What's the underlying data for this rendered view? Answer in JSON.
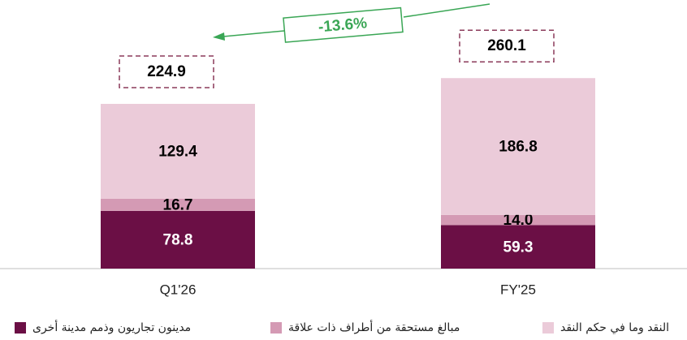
{
  "chart_data": {
    "type": "stacked_bar",
    "categories": [
      "Q1'26",
      "FY'25"
    ],
    "series": [
      {
        "name": "مدينون تجاريون وذمم مدينة أخرى",
        "color": "#6b0f45",
        "values": [
          78.8,
          59.3
        ]
      },
      {
        "name": "مبالغ مستحقة من أطراف ذات علاقة",
        "color": "#d49ab4",
        "values": [
          16.7,
          14.0
        ],
        "value_labels": [
          "16.7",
          "14.0"
        ]
      },
      {
        "name": "النقد وما في حكم النقد",
        "color": "#ebcbd9",
        "values": [
          129.4,
          186.8
        ]
      }
    ],
    "totals": [
      224.9,
      260.1
    ],
    "annotation": "-13.6%"
  }
}
